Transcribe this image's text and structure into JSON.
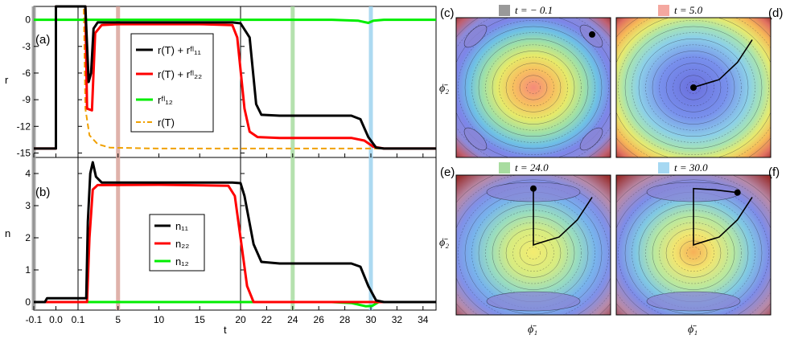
{
  "chart_data": [
    {
      "type": "line",
      "id": "a",
      "panel_label": "(a)",
      "ylabel": "r",
      "xlabel": "t",
      "ylim": [
        -15.5,
        1.5
      ],
      "yticks": [
        "0",
        "-3",
        "-6",
        "-9",
        "-12",
        "-15"
      ],
      "ytick_values": [
        0,
        -3,
        -6,
        -9,
        -12,
        -15
      ],
      "broken_x_axis": true,
      "x_segments": [
        {
          "range": [
            -0.1,
            0.1
          ],
          "ticks": [
            -0.1,
            0.0,
            0.1
          ],
          "tick_labels": [
            "-0.1",
            "0.0",
            "0.1"
          ]
        },
        {
          "range": [
            0.1,
            20
          ],
          "ticks": [
            5,
            10,
            15,
            20
          ],
          "tick_labels": [
            "5",
            "10",
            "15",
            "20"
          ]
        },
        {
          "range": [
            20,
            35
          ],
          "ticks": [
            22,
            24,
            26,
            28,
            30,
            32,
            34
          ],
          "tick_labels": [
            "22",
            "24",
            "26",
            "28",
            "30",
            "32",
            "34"
          ]
        }
      ],
      "marker_lines": [
        {
          "t": -0.1,
          "color": "#999999"
        },
        {
          "t": 5.0,
          "color": "#d9a59b"
        },
        {
          "t": 24.0,
          "color": "#a8dca0"
        },
        {
          "t": 30.0,
          "color": "#9ed4ee"
        }
      ],
      "legend": [
        "r(T) + rᶠˡ₁₁",
        "r(T) + rᶠˡ₂₂",
        "rᶠˡ₁₂",
        "r(T)"
      ],
      "legend_position": "center",
      "series": [
        {
          "name": "r(T) + rfl_11",
          "color": "#000000",
          "points": [
            [
              -0.1,
              -14.5
            ],
            [
              0.0,
              -14.5
            ],
            [
              0.0,
              1.5
            ],
            [
              0.1,
              1.5
            ],
            [
              1.0,
              1.5
            ],
            [
              1.4,
              -7
            ],
            [
              1.7,
              -6
            ],
            [
              2.0,
              -1
            ],
            [
              2.5,
              -0.3
            ],
            [
              5,
              -0.3
            ],
            [
              10,
              -0.3
            ],
            [
              15,
              -0.3
            ],
            [
              19,
              -0.3
            ],
            [
              20,
              -0.4
            ],
            [
              20.7,
              -2
            ],
            [
              21.2,
              -9.5
            ],
            [
              21.6,
              -10.7
            ],
            [
              23,
              -10.8
            ],
            [
              26,
              -10.8
            ],
            [
              28.5,
              -10.8
            ],
            [
              29.2,
              -11.2
            ],
            [
              29.8,
              -13.2
            ],
            [
              30.4,
              -14.4
            ],
            [
              31,
              -14.5
            ],
            [
              35,
              -14.5
            ]
          ]
        },
        {
          "name": "r(T) + rfl_22",
          "color": "#ff0000",
          "points": [
            [
              -0.1,
              -14.5
            ],
            [
              0.0,
              -14.5
            ],
            [
              0.0,
              1.5
            ],
            [
              0.1,
              1.5
            ],
            [
              1.0,
              1.5
            ],
            [
              1.2,
              -10
            ],
            [
              1.8,
              -10.2
            ],
            [
              2.2,
              -1.5
            ],
            [
              3,
              -0.6
            ],
            [
              5,
              -0.5
            ],
            [
              10,
              -0.5
            ],
            [
              15,
              -0.5
            ],
            [
              19,
              -0.6
            ],
            [
              19.6,
              -2
            ],
            [
              20.3,
              -10
            ],
            [
              20.7,
              -12.6
            ],
            [
              21.3,
              -13.2
            ],
            [
              23,
              -13.3
            ],
            [
              26,
              -13.3
            ],
            [
              28.5,
              -13.3
            ],
            [
              29.5,
              -13.6
            ],
            [
              30.2,
              -14.3
            ],
            [
              31,
              -14.5
            ],
            [
              35,
              -14.5
            ]
          ]
        },
        {
          "name": "rfl_12",
          "color": "#00ee00",
          "points": [
            [
              -0.1,
              0
            ],
            [
              0.1,
              0
            ],
            [
              10,
              0
            ],
            [
              20,
              0
            ],
            [
              27,
              0
            ],
            [
              29,
              -0.1
            ],
            [
              29.8,
              -0.35
            ],
            [
              30.2,
              -0.1
            ],
            [
              31,
              0
            ],
            [
              35,
              0
            ]
          ]
        },
        {
          "name": "r(T)",
          "color": "#f0a000",
          "dash": "7 4",
          "points": [
            [
              -0.1,
              -14.5
            ],
            [
              0.0,
              -14.5
            ],
            [
              0.0,
              1.5
            ],
            [
              0.1,
              1.5
            ],
            [
              0.8,
              1.5
            ],
            [
              1.0,
              -10
            ],
            [
              1.5,
              -13
            ],
            [
              2.5,
              -14
            ],
            [
              4,
              -14.4
            ],
            [
              10,
              -14.5
            ],
            [
              20,
              -14.5
            ],
            [
              35,
              -14.5
            ]
          ]
        }
      ]
    },
    {
      "type": "line",
      "id": "b",
      "panel_label": "(b)",
      "ylabel": "n",
      "xlabel": "t",
      "ylim": [
        -0.25,
        4.5
      ],
      "yticks": [
        "4",
        "3",
        "2",
        "1",
        "0"
      ],
      "ytick_values": [
        4,
        3,
        2,
        1,
        0
      ],
      "broken_x_axis": true,
      "legend": [
        "n₁₁",
        "n₂₂",
        "n₁₂"
      ],
      "legend_position": "center",
      "series": [
        {
          "name": "n11",
          "color": "#000000",
          "points": [
            [
              -0.1,
              0
            ],
            [
              -0.05,
              0
            ],
            [
              -0.04,
              0.12
            ],
            [
              0.1,
              0.12
            ],
            [
              1.1,
              0.12
            ],
            [
              1.3,
              2.5
            ],
            [
              1.6,
              4.0
            ],
            [
              1.9,
              4.35
            ],
            [
              2.3,
              3.9
            ],
            [
              3,
              3.72
            ],
            [
              10,
              3.72
            ],
            [
              19,
              3.72
            ],
            [
              20,
              3.7
            ],
            [
              20.3,
              3.3
            ],
            [
              21,
              1.8
            ],
            [
              21.6,
              1.25
            ],
            [
              23,
              1.2
            ],
            [
              26,
              1.2
            ],
            [
              28.5,
              1.2
            ],
            [
              29.2,
              1.1
            ],
            [
              29.8,
              0.5
            ],
            [
              30.4,
              0.05
            ],
            [
              31,
              0
            ],
            [
              35,
              0
            ]
          ]
        },
        {
          "name": "n22",
          "color": "#ff0000",
          "points": [
            [
              -0.1,
              0
            ],
            [
              0.1,
              0
            ],
            [
              1.2,
              0
            ],
            [
              1.5,
              2.0
            ],
            [
              1.9,
              3.5
            ],
            [
              2.5,
              3.64
            ],
            [
              10,
              3.65
            ],
            [
              18.5,
              3.62
            ],
            [
              19.3,
              3.3
            ],
            [
              20,
              2.0
            ],
            [
              20.5,
              0.5
            ],
            [
              21.0,
              0
            ],
            [
              35,
              0
            ]
          ]
        },
        {
          "name": "n12",
          "color": "#00ee00",
          "points": [
            [
              -0.1,
              0
            ],
            [
              0.1,
              0
            ],
            [
              20,
              0
            ],
            [
              27,
              0
            ],
            [
              28.5,
              -0.03
            ],
            [
              29.6,
              -0.13
            ],
            [
              30.1,
              -0.12
            ],
            [
              30.6,
              0
            ],
            [
              35,
              0
            ]
          ]
        }
      ]
    },
    {
      "type": "heatmap",
      "id": "c",
      "panel_label": "(c)",
      "title": "t = − 0.1",
      "swatch_color": "#999999",
      "xlabel": "",
      "ylabel": "ϕ̄₂",
      "description_minima": "four corners",
      "trajectory": [],
      "marker": [
        0.8,
        0.8
      ]
    },
    {
      "type": "heatmap",
      "id": "d",
      "panel_label": "(d)",
      "title": "t = 5.0",
      "swatch_color": "#f4a8a0",
      "xlabel": "",
      "ylabel": "",
      "trajectory": [
        [
          0.8,
          0.72
        ],
        [
          0.6,
          0.38
        ],
        [
          0.35,
          0.12
        ],
        [
          0.05,
          0.02
        ],
        [
          0,
          0
        ]
      ],
      "marker": [
        0,
        0
      ]
    },
    {
      "type": "heatmap",
      "id": "e",
      "panel_label": "(e)",
      "title": "t = 24.0",
      "swatch_color": "#a8dca0",
      "xlabel": "ϕ̄₁",
      "ylabel": "ϕ̄₂",
      "trajectory": [
        [
          0.8,
          0.72
        ],
        [
          0.6,
          0.38
        ],
        [
          0.35,
          0.12
        ],
        [
          0.05,
          0.02
        ],
        [
          0,
          0
        ],
        [
          0,
          0.45
        ],
        [
          0,
          0.85
        ]
      ],
      "marker": [
        0,
        0.85
      ]
    },
    {
      "type": "heatmap",
      "id": "f",
      "panel_label": "(f)",
      "title": "t = 30.0",
      "swatch_color": "#a6d8f2",
      "xlabel": "ϕ̄₁",
      "ylabel": "",
      "trajectory": [
        [
          0.8,
          0.72
        ],
        [
          0.6,
          0.38
        ],
        [
          0.35,
          0.12
        ],
        [
          0.05,
          0.02
        ],
        [
          0,
          0
        ],
        [
          0,
          0.45
        ],
        [
          0,
          0.85
        ],
        [
          0.3,
          0.83
        ],
        [
          0.6,
          0.79
        ]
      ],
      "marker": [
        0.6,
        0.79
      ]
    }
  ]
}
